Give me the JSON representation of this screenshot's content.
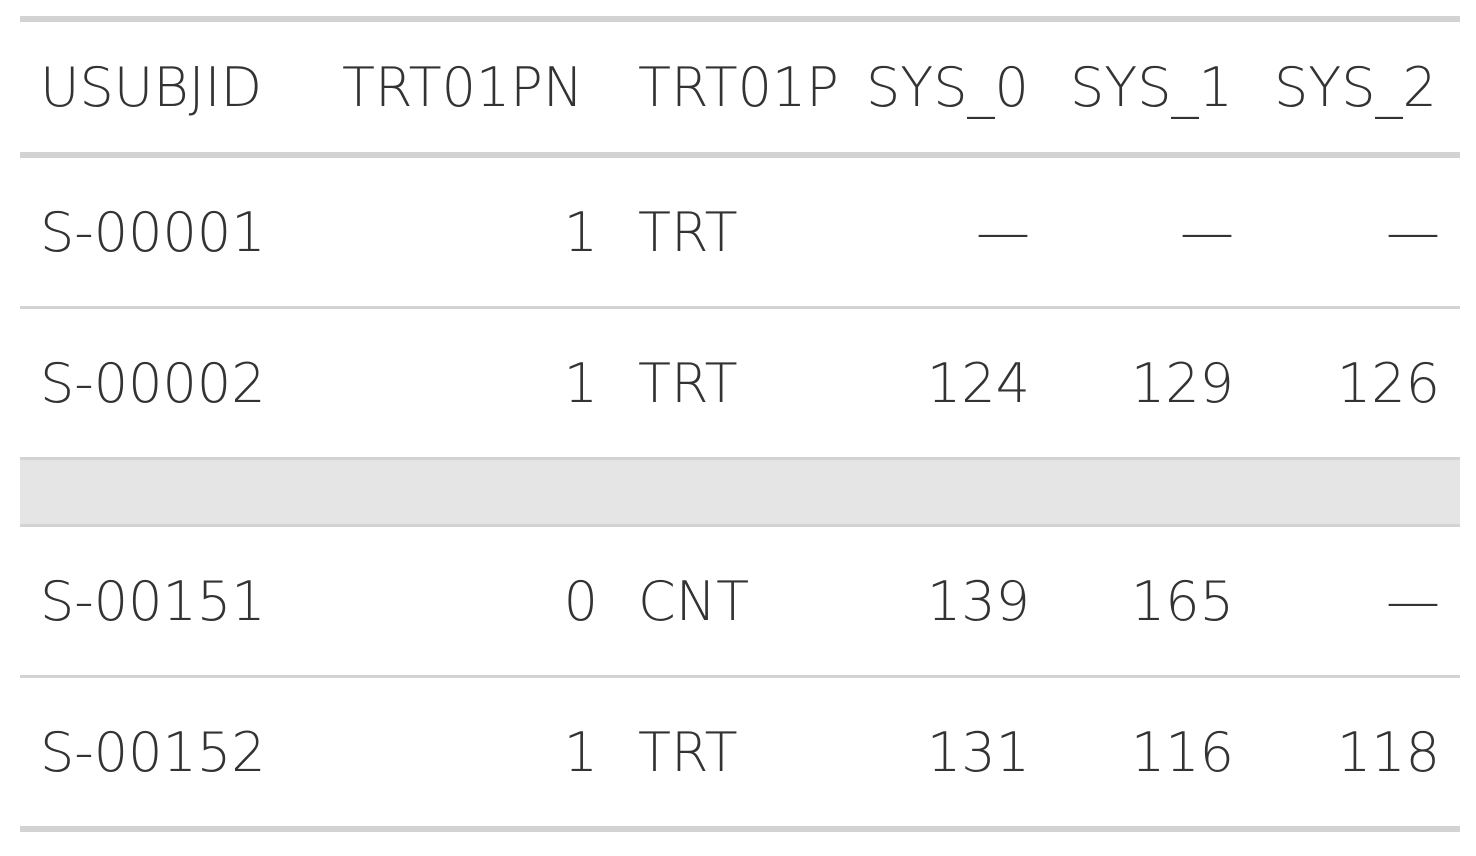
{
  "table": {
    "columns": [
      "USUBJID",
      "TRT01PN",
      "TRT01P",
      "SYS_0",
      "SYS_1",
      "SYS_2"
    ],
    "rows_top": [
      [
        "S-00001",
        "1",
        "TRT",
        "—",
        "—",
        "—"
      ],
      [
        "S-00002",
        "1",
        "TRT",
        "124",
        "129",
        "126"
      ]
    ],
    "rows_bottom": [
      [
        "S-00151",
        "0",
        "CNT",
        "139",
        "165",
        "—"
      ],
      [
        "S-00152",
        "1",
        "TRT",
        "131",
        "116",
        "118"
      ]
    ]
  },
  "colors": {
    "text": "#333333",
    "border": "#d3d3d3",
    "separator_fill": "#e5e5e5"
  }
}
